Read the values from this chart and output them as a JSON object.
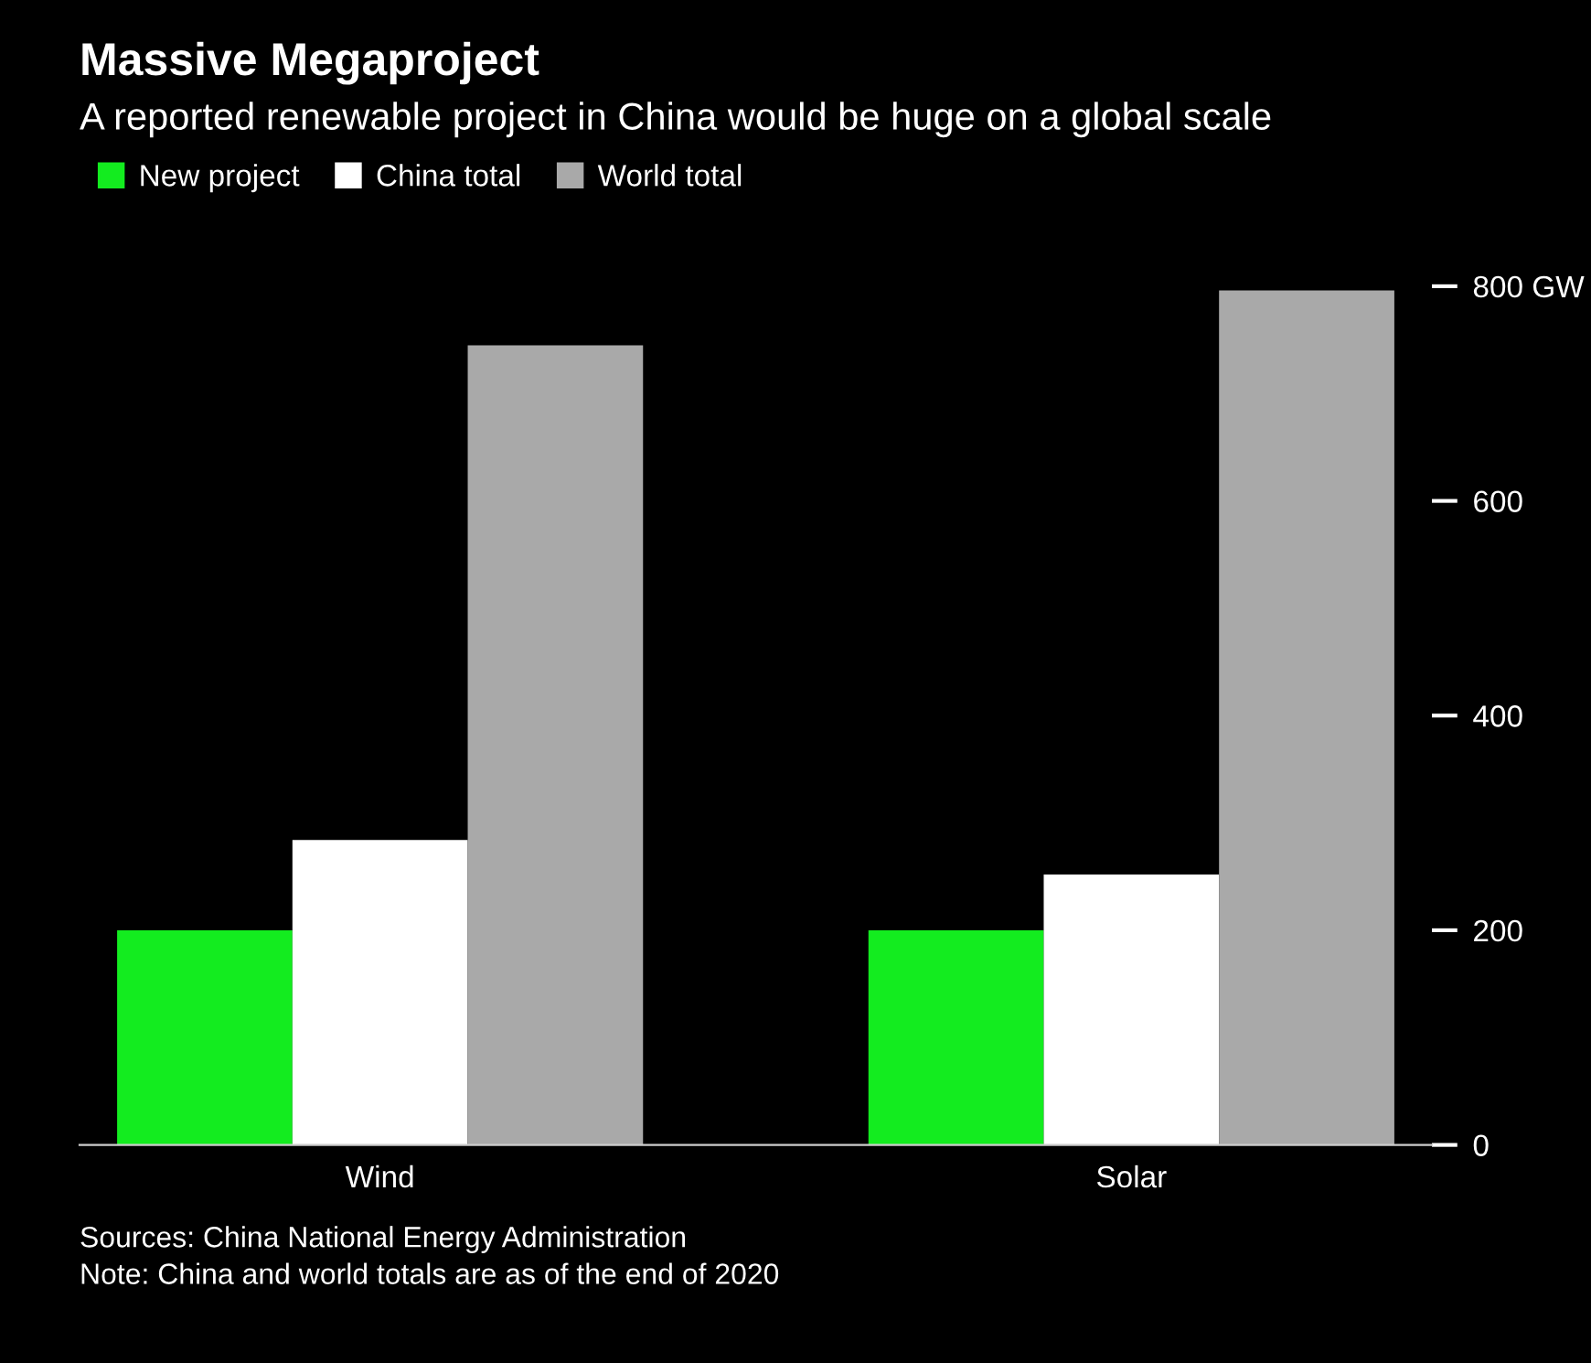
{
  "chart_data": {
    "type": "bar",
    "title": "Massive Megaproject",
    "subtitle": "A reported renewable project in China would be huge on a global scale",
    "categories": [
      "Wind",
      "Solar"
    ],
    "series": [
      {
        "name": "New project",
        "color": "#13ec1f",
        "values": [
          200,
          200
        ]
      },
      {
        "name": "China total",
        "color": "#ffffff",
        "values": [
          284,
          252
        ]
      },
      {
        "name": "World total",
        "color": "#a9a9a9",
        "values": [
          745,
          796
        ]
      }
    ],
    "ylim": [
      0,
      800
    ],
    "yticks": [
      0,
      200,
      400,
      600,
      {
        "value": 800,
        "label": "800 GW"
      }
    ],
    "grid": false,
    "legend": "top left",
    "annotations": [
      "Sources: China National Energy Administration",
      "Note: China and world totals are as of the end of 2020"
    ]
  }
}
